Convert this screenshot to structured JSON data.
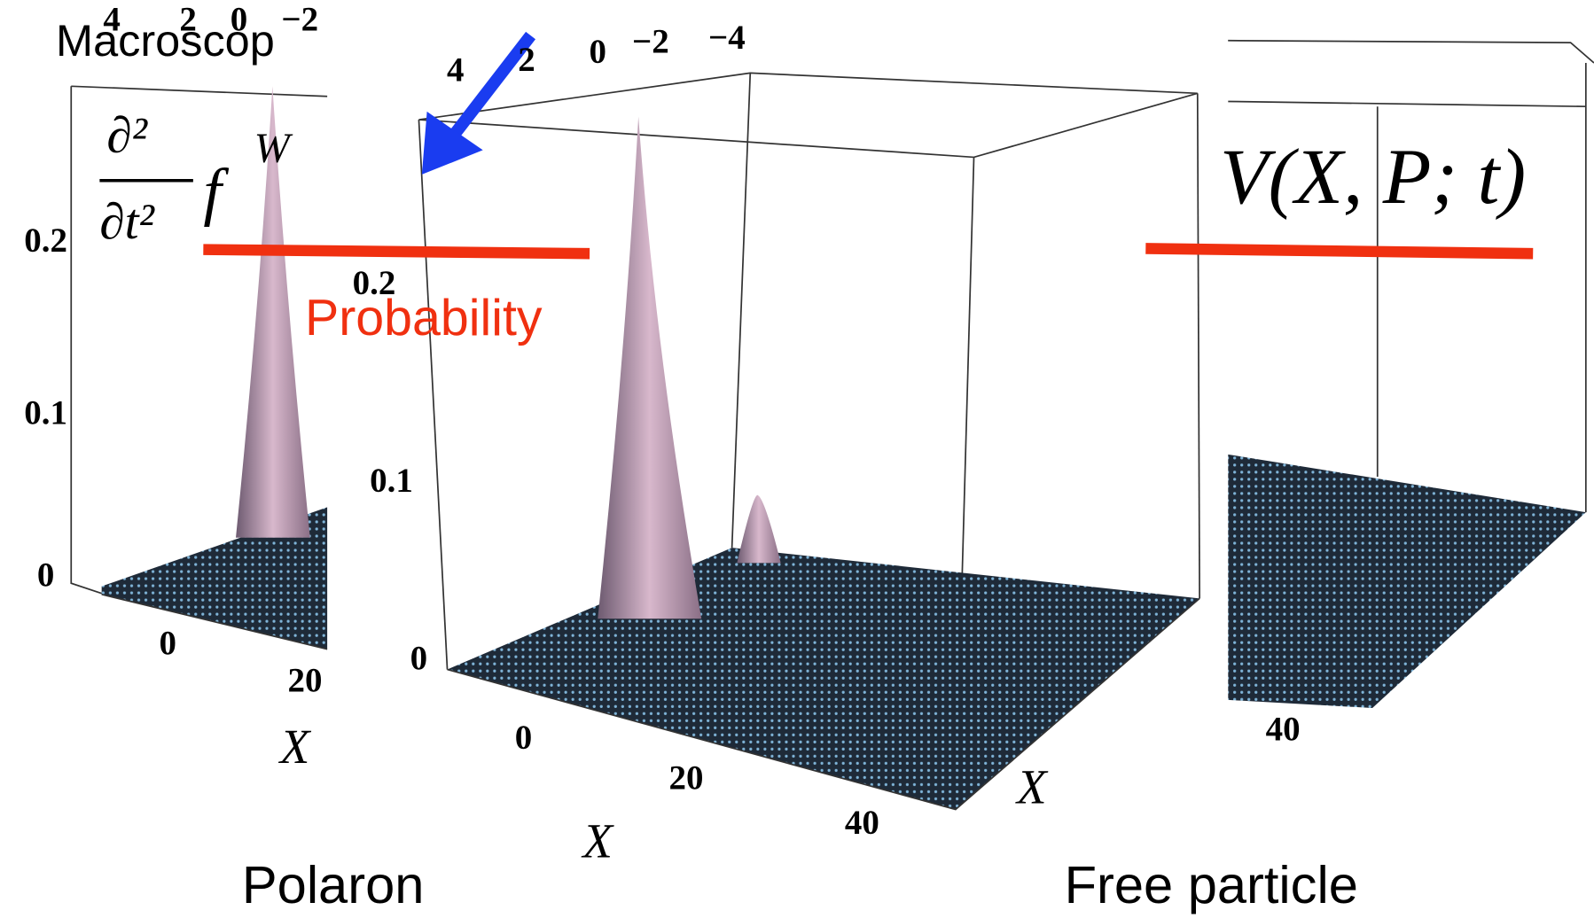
{
  "header": {
    "title": "Macroscop"
  },
  "formula": {
    "numerator": "∂²",
    "denominator": "∂t²",
    "function": "f",
    "superscript": "W",
    "right": "V(X, P; t)"
  },
  "annotation": "Probability",
  "plots": [
    {
      "caption": "Polaron",
      "zticks": [
        "0",
        "0.1",
        "0.2"
      ],
      "xticks": [
        "0",
        "20"
      ],
      "yticks": [
        "4",
        "2",
        "0",
        "−2"
      ],
      "xlabel": "X"
    },
    {
      "zticks": [
        "0",
        "0.1",
        "0.2"
      ],
      "xticks": [
        "0",
        "20",
        "40"
      ],
      "yticks": [
        "4",
        "2",
        "0",
        "−2",
        "−4"
      ],
      "xlabel": "X",
      "ylabel": "X"
    },
    {
      "caption": "Free particle",
      "xticks": [
        "40"
      ]
    }
  ]
}
